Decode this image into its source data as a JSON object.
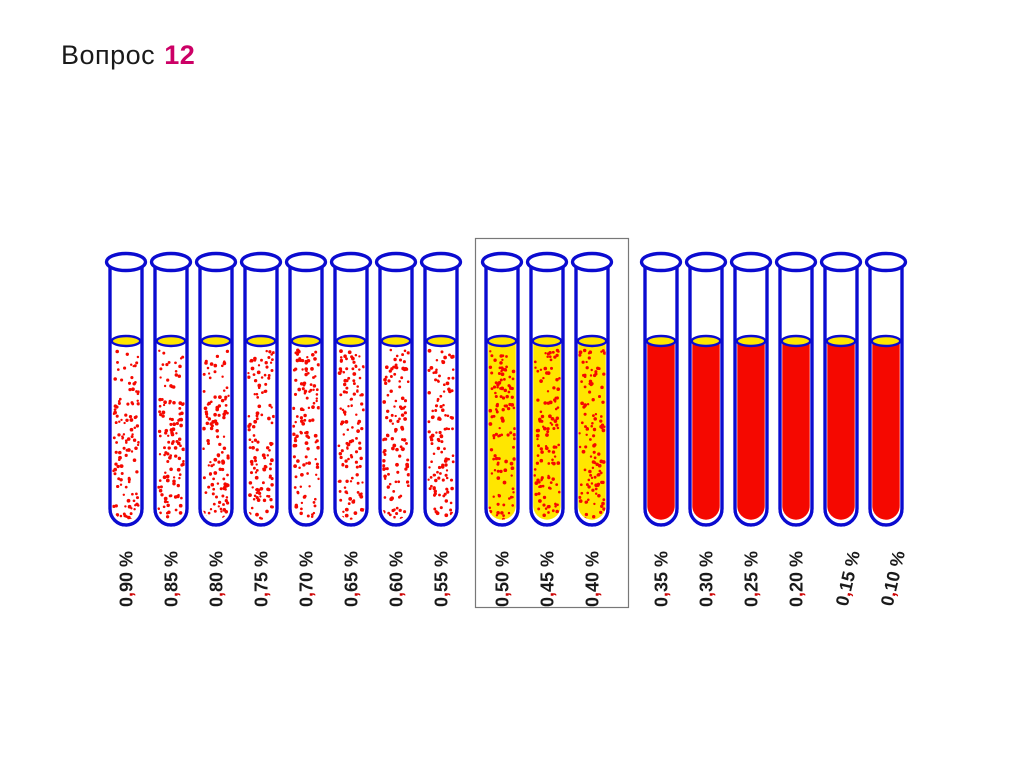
{
  "title": {
    "prefix": "Вопрос",
    "number": "12"
  },
  "colors": {
    "tube_outline": "#0b0bd0",
    "red": "#f50800",
    "yellow": "#ffe600",
    "label_text": "#1a1a1a",
    "label_comma": "#cc0000",
    "group_box_border": "#787878",
    "title_text": "#1a1a1a",
    "title_number": "#cc0066"
  },
  "tubes": [
    {
      "label": "0,90 %",
      "content": "red-dots-on-white",
      "boxed": false
    },
    {
      "label": "0,85 %",
      "content": "red-dots-on-white",
      "boxed": false
    },
    {
      "label": "0,80 %",
      "content": "red-dots-on-white",
      "boxed": false
    },
    {
      "label": "0,75 %",
      "content": "red-dots-on-white",
      "boxed": false
    },
    {
      "label": "0,70 %",
      "content": "red-dots-on-white",
      "boxed": false
    },
    {
      "label": "0,65 %",
      "content": "red-dots-on-white",
      "boxed": false
    },
    {
      "label": "0,60 %",
      "content": "red-dots-on-white",
      "boxed": false
    },
    {
      "label": "0,55 %",
      "content": "red-dots-on-white",
      "boxed": false
    },
    {
      "label": "0,50 %",
      "content": "red-dots-on-yellow",
      "boxed": true
    },
    {
      "label": "0,45 %",
      "content": "red-dots-on-yellow",
      "boxed": true
    },
    {
      "label": "0,40 %",
      "content": "red-dots-on-yellow",
      "boxed": true
    },
    {
      "label": "0,35 %",
      "content": "solid-red",
      "boxed": false
    },
    {
      "label": "0,30 %",
      "content": "solid-red",
      "boxed": false
    },
    {
      "label": "0,25 %",
      "content": "solid-red",
      "boxed": false
    },
    {
      "label": "0,20 %",
      "content": "solid-red",
      "boxed": false
    },
    {
      "label": "0,15 %",
      "content": "solid-red",
      "boxed": false
    },
    {
      "label": "0,10 %",
      "content": "solid-red",
      "boxed": false
    }
  ]
}
